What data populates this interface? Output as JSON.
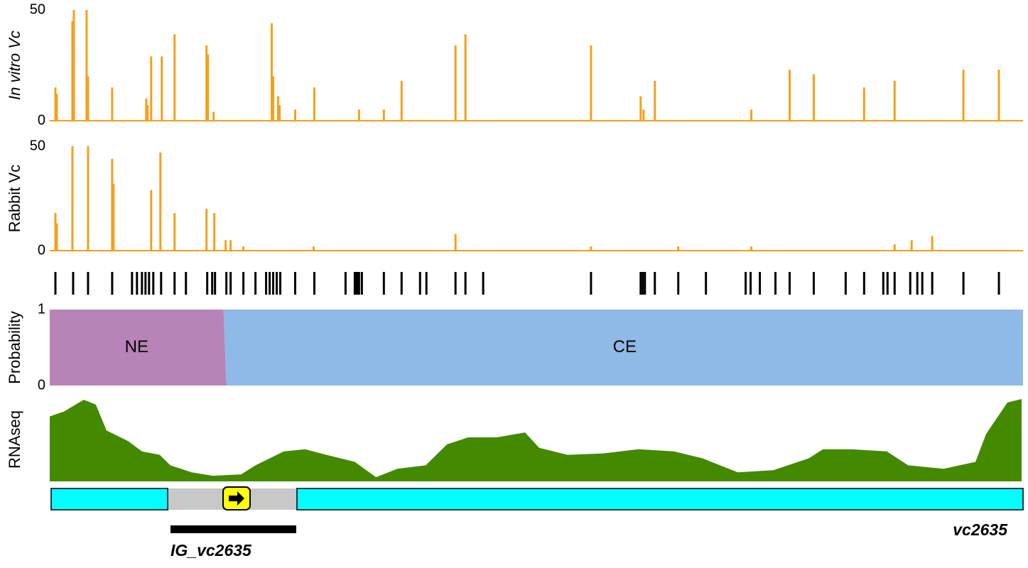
{
  "chart_data": [
    {
      "type": "bar",
      "ylabel": "In vitro Vc",
      "color": "#f5a01a",
      "x": [
        8,
        10,
        32,
        34,
        52,
        54,
        88,
        136,
        138,
        143,
        158,
        176,
        221,
        223,
        231,
        313,
        315,
        322,
        324,
        346,
        373,
        436,
        471,
        496,
        572,
        586,
        763,
        833,
        837,
        853,
        989,
        1043,
        1077,
        1148,
        1191,
        1288,
        1338
      ],
      "values": [
        15,
        12,
        45,
        50,
        50,
        20,
        15,
        10,
        7,
        29,
        29,
        39,
        34,
        30,
        4,
        44,
        20,
        11,
        7,
        5,
        15,
        5,
        5,
        18,
        34,
        39,
        34,
        11,
        5,
        18,
        5,
        23,
        21,
        15,
        18,
        23,
        23
      ],
      "xlim": [
        0,
        1372
      ],
      "ylim": [
        0,
        50
      ],
      "yticks": [
        0,
        50
      ]
    },
    {
      "type": "bar",
      "ylabel": "Rabbit Vc",
      "color": "#f5a01a",
      "x": [
        8,
        10,
        32,
        54,
        88,
        90,
        143,
        156,
        176,
        221,
        232,
        248,
        255,
        273,
        372,
        572,
        763,
        886,
        989,
        1191,
        1215,
        1244
      ],
      "values": [
        18,
        13,
        50,
        50,
        44,
        32,
        29,
        47,
        18,
        20,
        18,
        5,
        5,
        2,
        2,
        8,
        2,
        2,
        2,
        3,
        5,
        7
      ],
      "xlim": [
        0,
        1372
      ],
      "ylim": [
        0,
        50
      ],
      "yticks": [
        0,
        50
      ]
    },
    {
      "type": "rug",
      "color": "#000000",
      "x": [
        8,
        33,
        54,
        88,
        116,
        123,
        130,
        135,
        140,
        146,
        157,
        176,
        192,
        222,
        229,
        233,
        249,
        255,
        273,
        290,
        305,
        310,
        315,
        320,
        325,
        346,
        373,
        417,
        430,
        432,
        434,
        436,
        440,
        471,
        496,
        522,
        531,
        572,
        586,
        611,
        763,
        833,
        836,
        839,
        853,
        886,
        925,
        981,
        988,
        1001,
        1023,
        1043,
        1077,
        1122,
        1148,
        1175,
        1181,
        1191,
        1213,
        1223,
        1230,
        1244,
        1288,
        1338
      ],
      "xlim": [
        0,
        1372
      ]
    },
    {
      "type": "area",
      "stacked": true,
      "ylabel": "Probability",
      "x": [
        0,
        245,
        249,
        1372
      ],
      "series": [
        {
          "name": "NE",
          "color": "#b784b7",
          "values": [
            1,
            1,
            0,
            0
          ]
        },
        {
          "name": "CE",
          "color": "#8fb9e6",
          "values": [
            0,
            0,
            1,
            1
          ]
        }
      ],
      "xlim": [
        0,
        1372
      ],
      "ylim": [
        0,
        1
      ],
      "yticks": [
        0,
        1
      ]
    },
    {
      "type": "area",
      "ylabel": "RNAseq",
      "x": [
        0,
        20,
        48,
        65,
        80,
        110,
        130,
        155,
        170,
        200,
        230,
        270,
        290,
        330,
        360,
        390,
        430,
        460,
        490,
        530,
        560,
        590,
        630,
        670,
        690,
        730,
        780,
        830,
        880,
        920,
        970,
        1020,
        1070,
        1090,
        1130,
        1180,
        1210,
        1260,
        1305,
        1320,
        1350,
        1370
      ],
      "series": [
        {
          "color": "#438a00",
          "values": [
            93,
            100,
            117,
            110,
            73,
            58,
            43,
            38,
            23,
            13,
            8,
            10,
            23,
            43,
            46,
            38,
            28,
            6,
            18,
            23,
            53,
            63,
            63,
            70,
            48,
            38,
            40,
            46,
            43,
            33,
            13,
            16,
            33,
            46,
            46,
            43,
            23,
            18,
            28,
            68,
            113,
            118
          ]
        }
      ],
      "xlim": [
        0,
        1372
      ],
      "ylim": [
        0,
        120
      ]
    }
  ],
  "gene_track": {
    "labels": [
      "IG_vc2635",
      "vc2635"
    ]
  }
}
